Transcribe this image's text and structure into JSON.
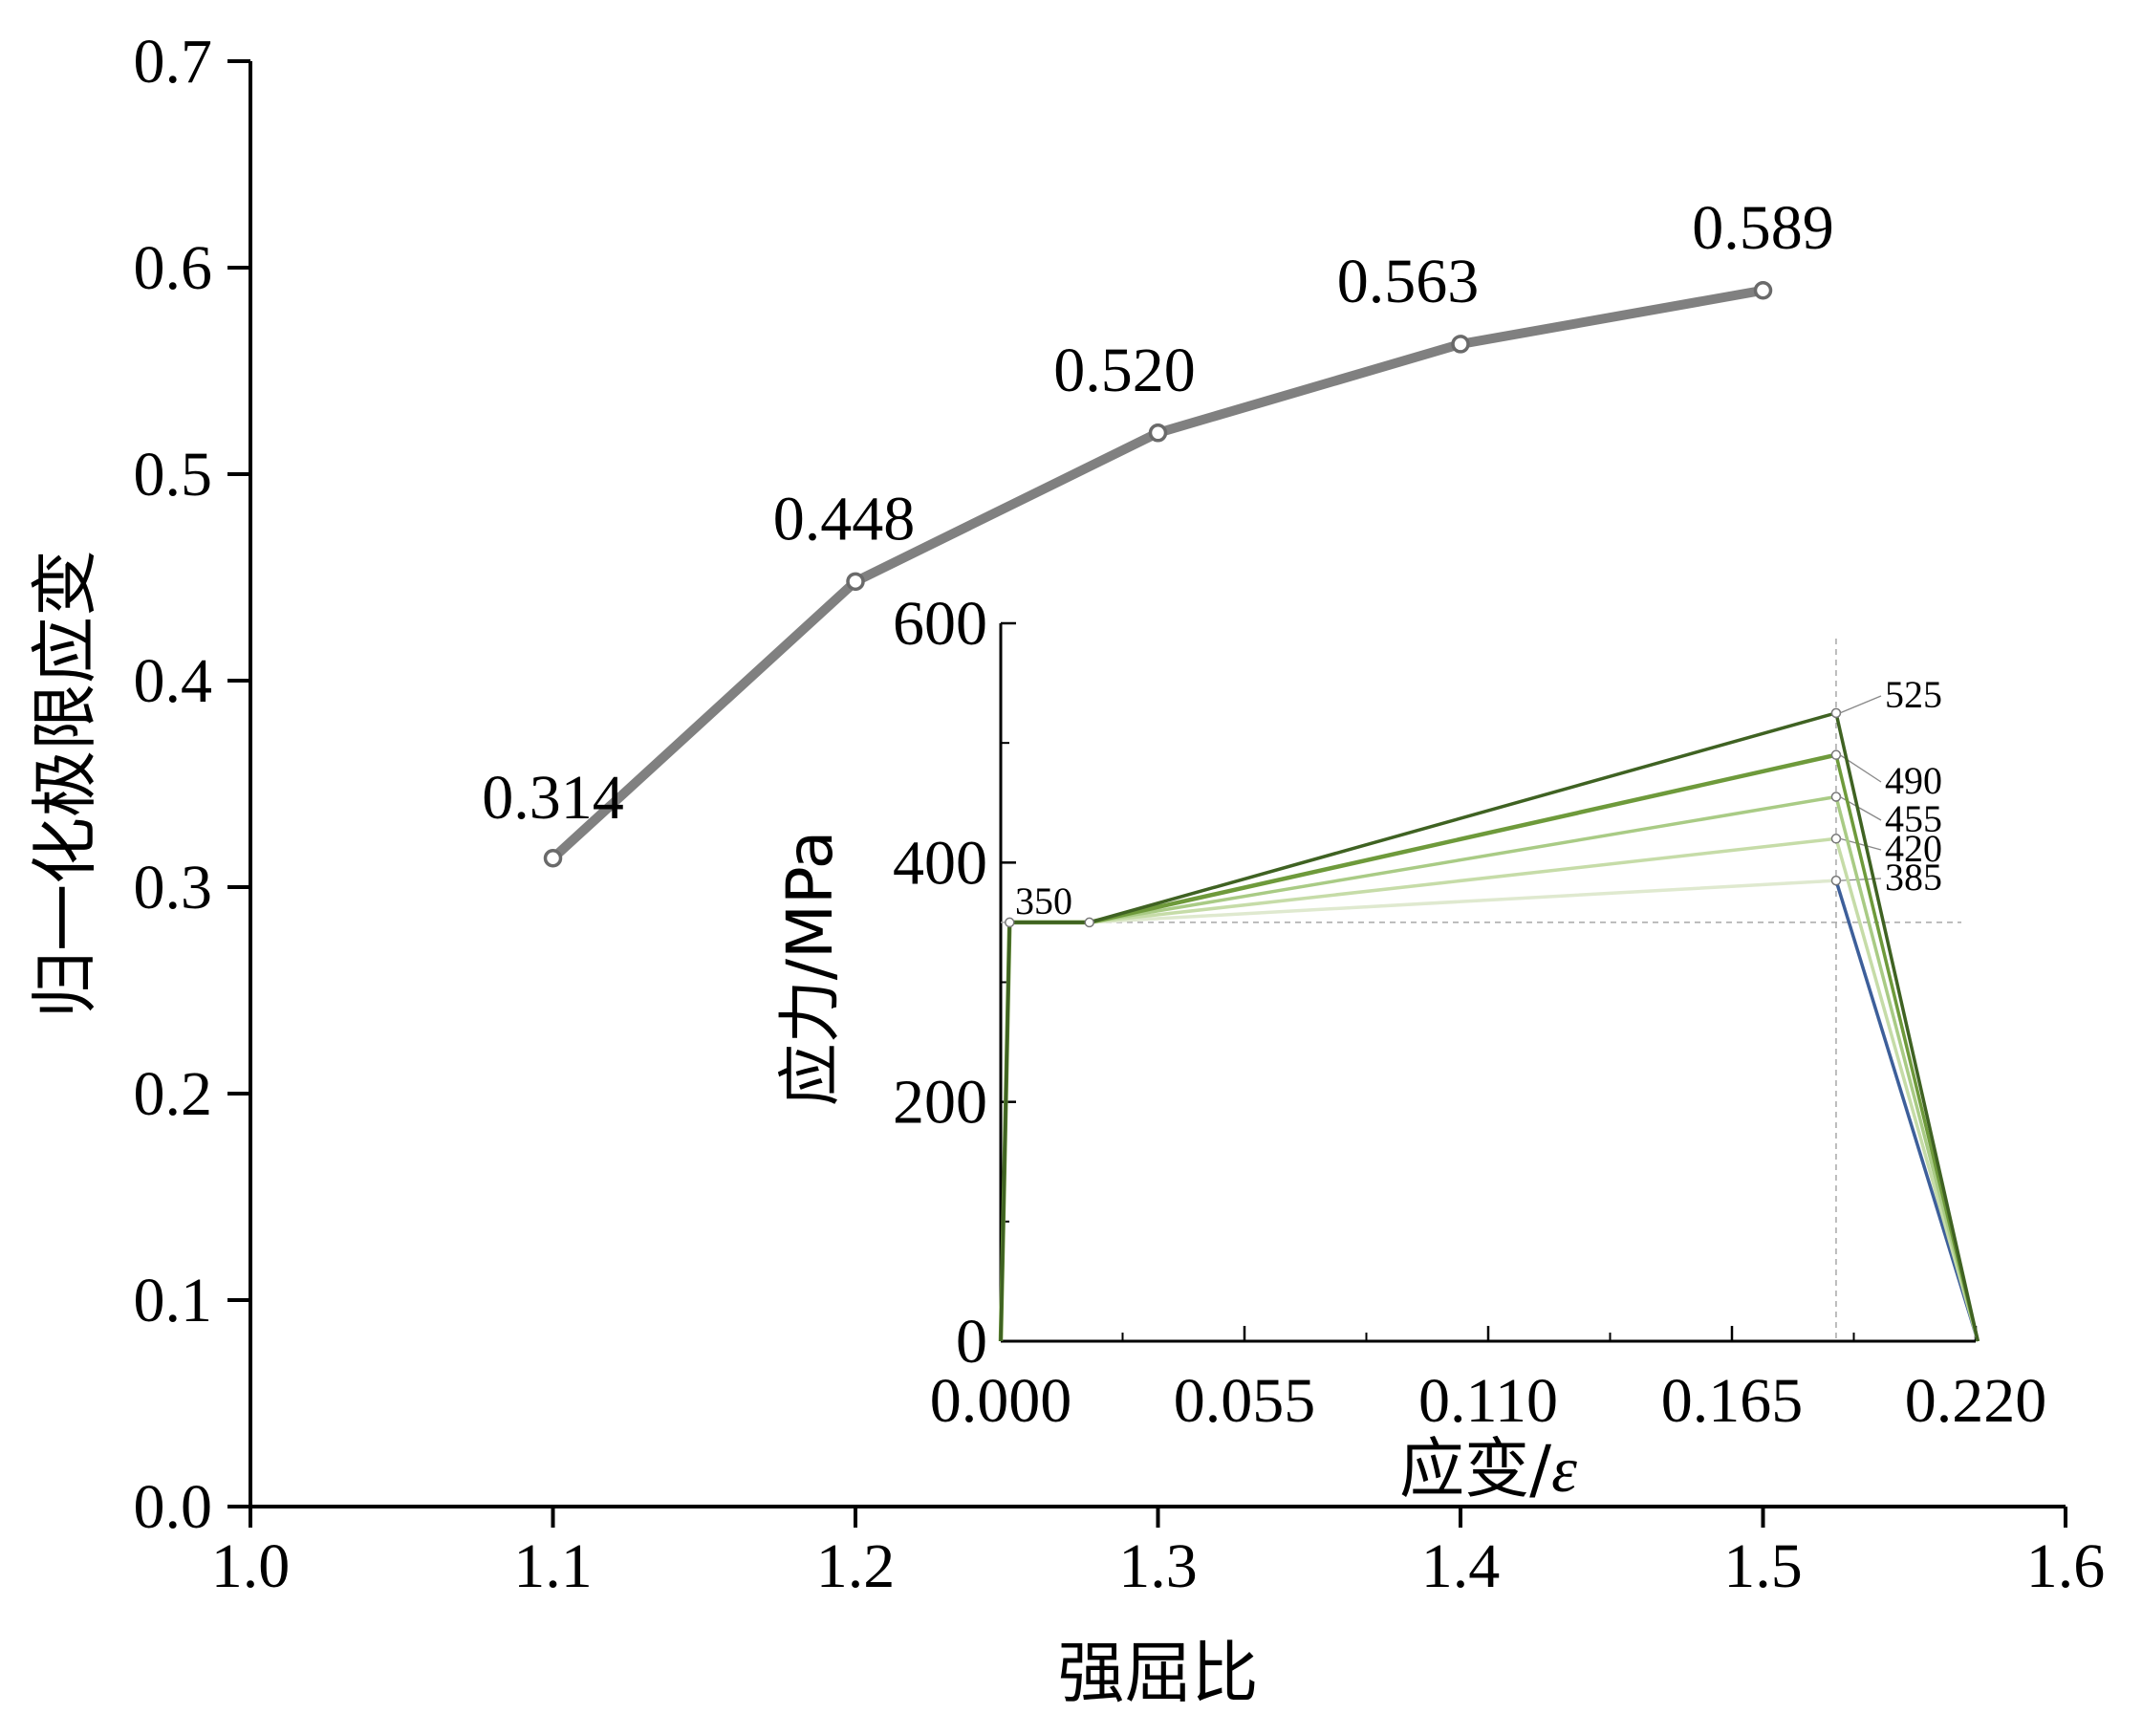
{
  "chart_data": [
    {
      "type": "line",
      "xlabel": "强屈比",
      "ylabel": "归一化极限应变",
      "xlim": [
        1.0,
        1.6
      ],
      "ylim": [
        0.0,
        0.7
      ],
      "x_ticks": [
        "1.0",
        "1.1",
        "1.2",
        "1.3",
        "1.4",
        "1.5",
        "1.6"
      ],
      "y_ticks": [
        "0.0",
        "0.1",
        "0.2",
        "0.3",
        "0.4",
        "0.5",
        "0.6",
        "0.7"
      ],
      "grid": false,
      "series": [
        {
          "color": "#808080",
          "x": [
            1.1,
            1.2,
            1.3,
            1.4,
            1.5
          ],
          "y": [
            0.314,
            0.448,
            0.52,
            0.563,
            0.589
          ],
          "labels": [
            "0.314",
            "0.448",
            "0.520",
            "0.563",
            "0.589"
          ]
        }
      ]
    },
    {
      "type": "line",
      "inset": true,
      "xlabel_prefix": "应变/",
      "xlabel_symbol": "ε",
      "ylabel": "应力/MPa",
      "xlim": [
        0.0,
        0.22
      ],
      "ylim": [
        0,
        600
      ],
      "x_ticks": [
        "0.000",
        "0.055",
        "0.110",
        "0.165",
        "0.220"
      ],
      "y_ticks": [
        "0",
        "200",
        "400",
        "600"
      ],
      "grid": false,
      "yield_stress": 350,
      "yield_label": "350",
      "yield_strain": 0.002,
      "hardening_start_strain": 0.02,
      "ultimate_strain": 0.1885,
      "fracture_strain": 0.2205,
      "reference_lines": {
        "x": 0.1885,
        "y": 350
      },
      "series": [
        {
          "ultimate_stress": 385,
          "label": "385",
          "color": "#dfe9cf"
        },
        {
          "ultimate_stress": 420,
          "label": "420",
          "color": "#c6dca8"
        },
        {
          "ultimate_stress": 455,
          "label": "455",
          "color": "#a9cb85"
        },
        {
          "ultimate_stress": 490,
          "label": "490",
          "color": "#6e9a3b"
        },
        {
          "ultimate_stress": 525,
          "label": "525",
          "color": "#3f6222"
        }
      ],
      "fracture_branch_color": "#3d5f9a"
    }
  ]
}
